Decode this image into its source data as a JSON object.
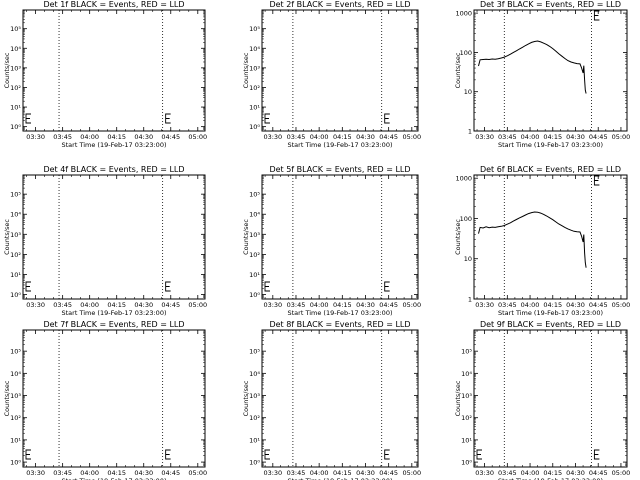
{
  "chart_data": {
    "type": "line",
    "title": "",
    "xlabel": "Start Time (19-Feb-17 03:23:00)",
    "ylabel": "Counts/sec",
    "x_ticks": [
      "03:30",
      "03:45",
      "04:00",
      "04:15",
      "04:30",
      "04:45",
      "05:00"
    ],
    "x_tick_minutes": [
      7,
      22,
      37,
      52,
      67,
      82,
      97
    ],
    "x_range_minutes": [
      0,
      101
    ],
    "vertical_dotted_lines_minutes": [
      20,
      77.5
    ],
    "panels": [
      {
        "title": "Det 1f BLACK = Events, RED = LLD",
        "y_scale": "log",
        "y_range": [
          0.6,
          900000
        ],
        "y_ticks": [
          "10⁰",
          "10¹",
          "10²",
          "10³",
          "10⁴",
          "10⁵"
        ],
        "y_tick_values": [
          1,
          10,
          100,
          1000,
          10000,
          100000
        ],
        "series": []
      },
      {
        "title": "Det 2f BLACK = Events, RED = LLD",
        "y_scale": "log",
        "y_range": [
          0.6,
          900000
        ],
        "y_ticks": [
          "10⁰",
          "10¹",
          "10²",
          "10³",
          "10⁴",
          "10⁵"
        ],
        "y_tick_values": [
          1,
          10,
          100,
          1000,
          10000,
          100000
        ],
        "series": []
      },
      {
        "title": "Det 3f BLACK = Events, RED = LLD",
        "y_scale": "log",
        "y_range": [
          1,
          1200
        ],
        "y_ticks": [
          "1",
          "10",
          "100",
          "1000"
        ],
        "y_tick_values": [
          1,
          10,
          100,
          1000
        ],
        "series": [
          {
            "color": "#000000",
            "x": [
              3,
              4,
              6,
              8,
              10,
              12,
              14,
              16,
              18,
              20,
              22,
              24,
              26,
              28,
              30,
              32,
              34,
              36,
              38,
              40,
              42,
              44,
              46,
              48,
              50,
              52,
              54,
              56,
              58,
              60,
              62,
              64,
              66,
              68,
              70,
              71,
              72,
              72.5,
              73,
              73.5,
              74
            ],
            "y": [
              45,
              65,
              66,
              67,
              66,
              68,
              67,
              69,
              72,
              76,
              82,
              90,
              100,
              110,
              122,
              135,
              150,
              165,
              180,
              190,
              195,
              185,
              172,
              158,
              142,
              125,
              108,
              92,
              80,
              70,
              62,
              57,
              54,
              52,
              51,
              40,
              30,
              46,
              20,
              11,
              9
            ]
          }
        ]
      },
      {
        "title": "Det 4f BLACK = Events, RED = LLD",
        "y_scale": "log",
        "y_range": [
          0.6,
          900000
        ],
        "y_ticks": [
          "10⁰",
          "10¹",
          "10²",
          "10³",
          "10⁴",
          "10⁵"
        ],
        "y_tick_values": [
          1,
          10,
          100,
          1000,
          10000,
          100000
        ],
        "series": []
      },
      {
        "title": "Det 5f BLACK = Events, RED = LLD",
        "y_scale": "log",
        "y_range": [
          0.6,
          900000
        ],
        "y_ticks": [
          "10⁰",
          "10¹",
          "10²",
          "10³",
          "10⁴",
          "10⁵"
        ],
        "y_tick_values": [
          1,
          10,
          100,
          1000,
          10000,
          100000
        ],
        "series": []
      },
      {
        "title": "Det 6f BLACK = Events, RED = LLD",
        "y_scale": "log",
        "y_range": [
          1,
          1200
        ],
        "y_ticks": [
          "1",
          "10",
          "100",
          "1000"
        ],
        "y_tick_values": [
          1,
          10,
          100,
          1000
        ],
        "series": [
          {
            "color": "#000000",
            "x": [
              3,
              4,
              6,
              8,
              10,
              12,
              14,
              16,
              18,
              20,
              22,
              24,
              26,
              28,
              30,
              32,
              34,
              36,
              38,
              40,
              42,
              44,
              46,
              48,
              50,
              52,
              54,
              56,
              58,
              60,
              62,
              64,
              66,
              68,
              70,
              71,
              72,
              72.5,
              73,
              73.5,
              74
            ],
            "y": [
              42,
              60,
              58,
              62,
              59,
              61,
              60,
              62,
              64,
              67,
              72,
              78,
              86,
              94,
              103,
              112,
              122,
              132,
              140,
              145,
              143,
              136,
              126,
              115,
              104,
              93,
              82,
              73,
              66,
              60,
              55,
              51,
              48,
              47,
              46,
              36,
              26,
              40,
              14,
              8,
              6
            ]
          }
        ]
      },
      {
        "title": "Det 7f BLACK = Events, RED = LLD",
        "y_scale": "log",
        "y_range": [
          0.6,
          900000
        ],
        "y_ticks": [
          "10⁰",
          "10¹",
          "10²",
          "10³",
          "10⁴",
          "10⁵"
        ],
        "y_tick_values": [
          1,
          10,
          100,
          1000,
          10000,
          100000
        ],
        "series": []
      },
      {
        "title": "Det 8f BLACK = Events, RED = LLD",
        "y_scale": "log",
        "y_range": [
          0.6,
          900000
        ],
        "y_ticks": [
          "10⁰",
          "10¹",
          "10²",
          "10³",
          "10⁴",
          "10⁵"
        ],
        "y_tick_values": [
          1,
          10,
          100,
          1000,
          10000,
          100000
        ],
        "series": []
      },
      {
        "title": "Det 9f BLACK = Events, RED = LLD",
        "y_scale": "log",
        "y_range": [
          0.6,
          900000
        ],
        "y_ticks": [
          "10⁰",
          "10¹",
          "10²",
          "10³",
          "10⁴",
          "10⁵"
        ],
        "y_tick_values": [
          1,
          10,
          100,
          1000,
          10000,
          100000
        ],
        "series": []
      }
    ]
  }
}
